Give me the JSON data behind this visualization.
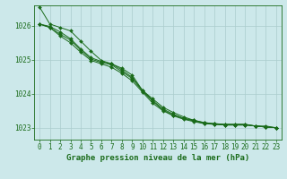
{
  "title": "Graphe pression niveau de la mer (hPa)",
  "background_color": "#cce8ea",
  "grid_color": "#aacccc",
  "line_color": "#1a6b1a",
  "xlim": [
    -0.5,
    23.5
  ],
  "ylim": [
    1022.65,
    1026.6
  ],
  "yticks": [
    1023,
    1024,
    1025,
    1026
  ],
  "xticks": [
    0,
    1,
    2,
    3,
    4,
    5,
    6,
    7,
    8,
    9,
    10,
    11,
    12,
    13,
    14,
    15,
    16,
    17,
    18,
    19,
    20,
    21,
    22,
    23
  ],
  "series": [
    [
      1026.55,
      1026.05,
      1025.95,
      1025.85,
      1025.55,
      1025.25,
      1024.98,
      1024.88,
      1024.75,
      1024.55,
      1024.1,
      1023.85,
      1023.6,
      1023.45,
      1023.32,
      1023.22,
      1023.15,
      1023.12,
      1023.1,
      1023.1,
      1023.1,
      1023.05,
      1023.05,
      1023.0
    ],
    [
      1026.05,
      1025.95,
      1025.7,
      1025.5,
      1025.22,
      1024.98,
      1024.88,
      1024.78,
      1024.6,
      1024.38,
      1024.05,
      1023.72,
      1023.5,
      1023.35,
      1023.25,
      1023.18,
      1023.12,
      1023.1,
      1023.08,
      1023.08,
      1023.08,
      1023.05,
      1023.02,
      1023.0
    ],
    [
      1026.05,
      1025.95,
      1025.75,
      1025.58,
      1025.28,
      1025.02,
      1024.92,
      1024.85,
      1024.65,
      1024.45,
      1024.08,
      1023.78,
      1023.52,
      1023.37,
      1023.27,
      1023.2,
      1023.13,
      1023.1,
      1023.08,
      1023.08,
      1023.08,
      1023.05,
      1023.02,
      1023.0
    ],
    [
      1026.05,
      1025.98,
      1025.82,
      1025.62,
      1025.32,
      1025.06,
      1024.95,
      1024.88,
      1024.7,
      1024.48,
      1024.1,
      1023.8,
      1023.55,
      1023.4,
      1023.28,
      1023.22,
      1023.15,
      1023.12,
      1023.1,
      1023.1,
      1023.1,
      1023.05,
      1023.02,
      1023.0
    ]
  ],
  "figsize": [
    3.2,
    2.0
  ],
  "dpi": 100,
  "tick_fontsize": 5.5,
  "label_fontsize": 6.5
}
